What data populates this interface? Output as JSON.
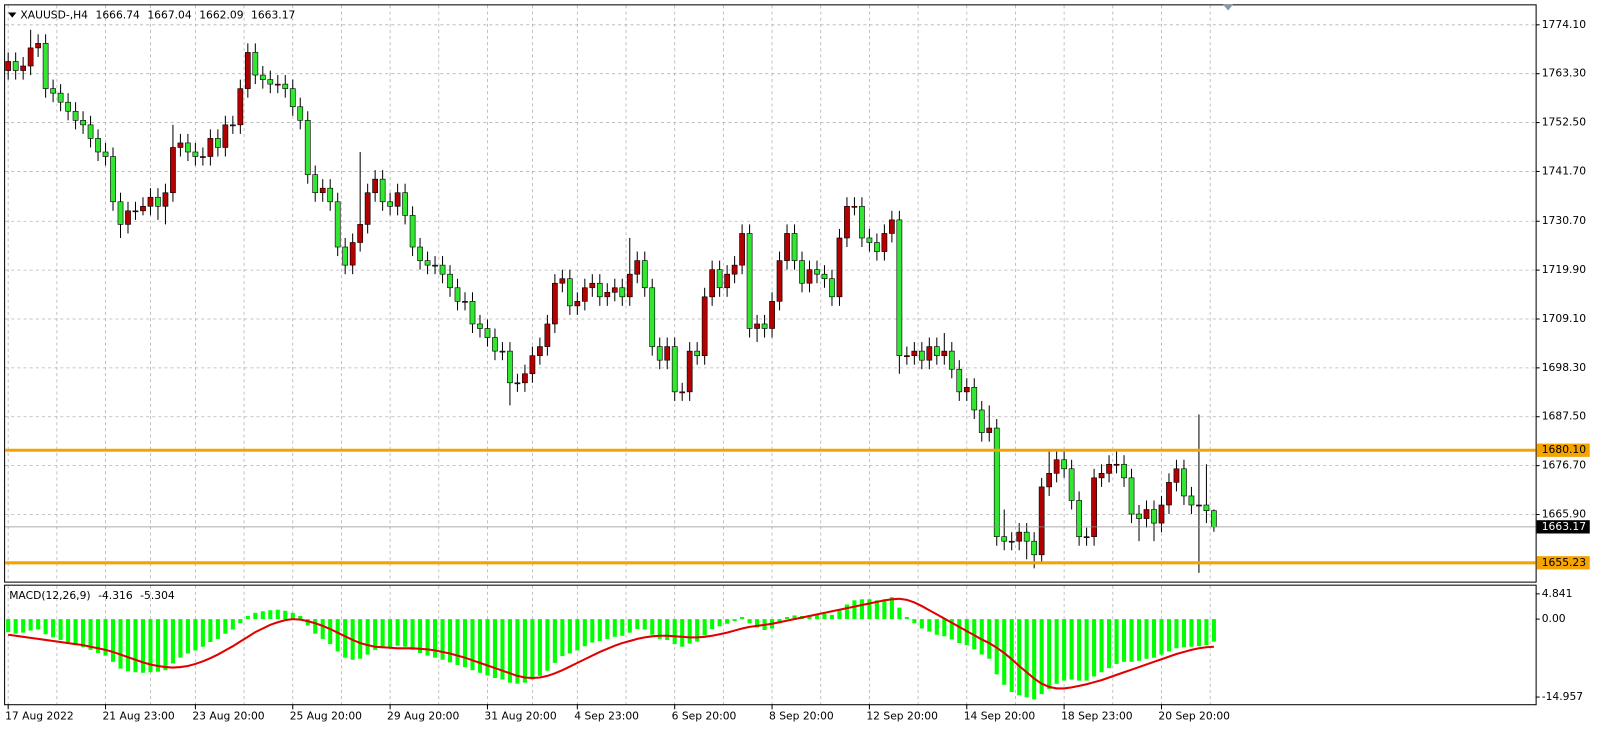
{
  "chart_data": {
    "type": "candlestick",
    "symbol": "XAUUSD-,H4",
    "bull_color": "#b30000",
    "bear_color": "#32e632",
    "grid": true,
    "ylim": [
      1651.3,
      1778.4
    ],
    "yticks": [
      {
        "value": 1774.1,
        "label": "1774.10"
      },
      {
        "value": 1763.3,
        "label": "1763.30"
      },
      {
        "value": 1752.5,
        "label": "1752.50"
      },
      {
        "value": 1741.7,
        "label": "1741.70"
      },
      {
        "value": 1730.7,
        "label": "1730.70"
      },
      {
        "value": 1719.9,
        "label": "1719.90"
      },
      {
        "value": 1709.1,
        "label": "1709.10"
      },
      {
        "value": 1698.3,
        "label": "1698.30"
      },
      {
        "value": 1687.5,
        "label": "1687.50"
      },
      {
        "value": 1676.7,
        "label": "1676.70"
      },
      {
        "value": 1665.9,
        "label": "1665.90"
      }
    ],
    "levels": [
      {
        "value": 1680.1,
        "label": "1680.10"
      },
      {
        "value": 1655.23,
        "label": "1655.23"
      }
    ],
    "level_color": "#f5a300",
    "categories": [
      "17 Aug 2022",
      null,
      null,
      null,
      null,
      null,
      null,
      null,
      null,
      null,
      null,
      null,
      null,
      "21 Aug 23:00",
      null,
      null,
      null,
      null,
      null,
      null,
      null,
      null,
      null,
      null,
      null,
      "23 Aug 20:00",
      null,
      null,
      null,
      null,
      null,
      null,
      null,
      null,
      null,
      null,
      null,
      null,
      "25 Aug 20:00",
      null,
      null,
      null,
      null,
      null,
      null,
      null,
      null,
      null,
      null,
      null,
      null,
      "29 Aug 20:00",
      null,
      null,
      null,
      null,
      null,
      null,
      null,
      null,
      null,
      null,
      null,
      null,
      "31 Aug 20:00",
      null,
      null,
      null,
      null,
      null,
      null,
      null,
      null,
      null,
      null,
      null,
      "4 Sep 23:00",
      null,
      null,
      null,
      null,
      null,
      null,
      null,
      null,
      null,
      null,
      null,
      null,
      "6 Sep 20:00",
      null,
      null,
      null,
      null,
      null,
      null,
      null,
      null,
      null,
      null,
      null,
      null,
      "8 Sep 20:00",
      null,
      null,
      null,
      null,
      null,
      null,
      null,
      null,
      null,
      null,
      null,
      null,
      "12 Sep 20:00",
      null,
      null,
      null,
      null,
      null,
      null,
      null,
      null,
      null,
      null,
      null,
      null,
      "14 Sep 20:00",
      null,
      null,
      null,
      null,
      null,
      null,
      null,
      null,
      null,
      null,
      null,
      null,
      "18 Sep 23:00",
      null,
      null,
      null,
      null,
      null,
      null,
      null,
      null,
      null,
      null,
      null,
      null,
      "20 Sep 20:00",
      null,
      null,
      null,
      null,
      null,
      null,
      null
    ],
    "open": [
      1764,
      1766,
      1764,
      1765,
      1769,
      1770,
      1760,
      1759,
      1757,
      1755,
      1753,
      1752,
      1749,
      1746,
      1745,
      1735,
      1730,
      1733,
      1733,
      1734,
      1736,
      1734,
      1737,
      1747,
      1748,
      1746,
      1745,
      1745,
      1749,
      1747,
      1752,
      1752,
      1760,
      1768,
      1763,
      1762,
      1761,
      1761,
      1760,
      1756,
      1753,
      1741,
      1737,
      1738,
      1735,
      1725,
      1721,
      1726,
      1730,
      1737,
      1740,
      1735,
      1734,
      1737,
      1732,
      1725,
      1722,
      1721,
      1721,
      1719,
      1716,
      1713,
      1713,
      1708,
      1707,
      1705,
      1702,
      1702,
      1695,
      1695,
      1697,
      1701,
      1703,
      1708,
      1717,
      1718,
      1712,
      1713,
      1716,
      1717,
      1714,
      1715,
      1716,
      1714,
      1719,
      1722,
      1716,
      1703,
      1700,
      1703,
      1693,
      1693,
      1702,
      1701,
      1714,
      1720,
      1716,
      1719,
      1721,
      1728,
      1707,
      1708,
      1707,
      1713,
      1722,
      1728,
      1722,
      1717,
      1720,
      1719,
      1718,
      1714,
      1727,
      1734,
      1734,
      1727,
      1726,
      1724,
      1728,
      1731,
      1701,
      1701,
      1702,
      1700,
      1703,
      1701,
      1702,
      1698,
      1693,
      1694,
      1689,
      1684,
      1685,
      1661,
      1660,
      1660,
      1662,
      1660,
      1657,
      1672,
      1675,
      1678,
      1676,
      1669,
      1661,
      1661,
      1674,
      1675,
      1677,
      1677,
      1674,
      1666,
      1665,
      1667,
      1664,
      1668,
      1673,
      1676,
      1670,
      1668,
      1668,
      1666.74
    ],
    "high": [
      1768,
      1768,
      1767,
      1773,
      1772,
      1772,
      1762,
      1761,
      1759,
      1757,
      1755,
      1754,
      1751,
      1748,
      1747,
      1737,
      1735,
      1735,
      1736,
      1738,
      1738,
      1739,
      1752,
      1750,
      1750,
      1748,
      1747,
      1751,
      1751,
      1754,
      1754,
      1762,
      1770,
      1770,
      1765,
      1764,
      1763,
      1763,
      1762,
      1758,
      1755,
      1743,
      1740,
      1740,
      1737,
      1727,
      1728,
      1746,
      1739,
      1742,
      1742,
      1737,
      1739,
      1739,
      1734,
      1727,
      1724,
      1723,
      1723,
      1721,
      1718,
      1715,
      1715,
      1710,
      1709,
      1707,
      1704,
      1704,
      1697,
      1699,
      1703,
      1705,
      1710,
      1719,
      1720,
      1720,
      1715,
      1718,
      1719,
      1719,
      1717,
      1718,
      1718,
      1727,
      1724,
      1724,
      1718,
      1705,
      1705,
      1705,
      1695,
      1704,
      1704,
      1716,
      1722,
      1722,
      1721,
      1723,
      1730,
      1730,
      1710,
      1710,
      1715,
      1724,
      1730,
      1730,
      1724,
      1722,
      1722,
      1721,
      1720,
      1729,
      1736,
      1736,
      1736,
      1729,
      1728,
      1730,
      1733,
      1733,
      1703,
      1704,
      1704,
      1705,
      1705,
      1706,
      1704,
      1700,
      1696,
      1696,
      1691,
      1690,
      1687,
      1667,
      1662,
      1664,
      1664,
      1662,
      1674,
      1680,
      1680,
      1680,
      1678,
      1671,
      1663,
      1676,
      1677,
      1679,
      1680,
      1679,
      1676,
      1668,
      1669,
      1669,
      1670,
      1675,
      1678,
      1678,
      1672,
      1688,
      1677,
      1667.04
    ],
    "low": [
      1762,
      1762,
      1762,
      1763,
      1767,
      1758,
      1757,
      1755,
      1753,
      1751,
      1750,
      1747,
      1744,
      1743,
      1733,
      1727,
      1728,
      1731,
      1732,
      1732,
      1731,
      1730,
      1735,
      1745,
      1744,
      1743,
      1743,
      1743,
      1745,
      1745,
      1750,
      1750,
      1758,
      1761,
      1760,
      1759,
      1759,
      1758,
      1754,
      1751,
      1739,
      1735,
      1735,
      1733,
      1723,
      1719,
      1719,
      1724,
      1728,
      1735,
      1733,
      1732,
      1732,
      1730,
      1723,
      1720,
      1719,
      1719,
      1717,
      1714,
      1711,
      1711,
      1706,
      1705,
      1703,
      1700,
      1700,
      1690,
      1693,
      1693,
      1695,
      1699,
      1701,
      1706,
      1715,
      1710,
      1710,
      1711,
      1714,
      1712,
      1712,
      1713,
      1712,
      1712,
      1717,
      1714,
      1701,
      1698,
      1698,
      1691,
      1691,
      1691,
      1699,
      1699,
      1712,
      1714,
      1714,
      1717,
      1719,
      1705,
      1704,
      1705,
      1705,
      1711,
      1720,
      1720,
      1715,
      1715,
      1717,
      1716,
      1712,
      1712,
      1725,
      1732,
      1725,
      1724,
      1722,
      1722,
      1726,
      1697,
      1699,
      1699,
      1698,
      1698,
      1699,
      1699,
      1696,
      1691,
      1691,
      1687,
      1682,
      1682,
      1659,
      1658,
      1658,
      1658,
      1656,
      1654,
      1655,
      1670,
      1673,
      1674,
      1667,
      1659,
      1659,
      1659,
      1672,
      1673,
      1675,
      1672,
      1664,
      1660,
      1663,
      1660,
      1662,
      1666,
      1671,
      1668,
      1666,
      1653,
      1664,
      1662.09
    ],
    "close": [
      1766,
      1764,
      1765,
      1769,
      1770,
      1760,
      1759,
      1757,
      1755,
      1753,
      1752,
      1749,
      1746,
      1745,
      1735,
      1730,
      1733,
      1733,
      1734,
      1736,
      1734,
      1737,
      1747,
      1748,
      1746,
      1745,
      1745,
      1749,
      1747,
      1752,
      1752,
      1760,
      1768,
      1763,
      1762,
      1761,
      1761,
      1760,
      1756,
      1753,
      1741,
      1737,
      1738,
      1735,
      1725,
      1721,
      1726,
      1730,
      1737,
      1740,
      1735,
      1734,
      1737,
      1732,
      1725,
      1722,
      1721,
      1721,
      1719,
      1716,
      1713,
      1713,
      1708,
      1707,
      1705,
      1702,
      1702,
      1695,
      1695,
      1697,
      1701,
      1703,
      1708,
      1717,
      1718,
      1712,
      1713,
      1716,
      1717,
      1714,
      1715,
      1716,
      1714,
      1719,
      1722,
      1716,
      1703,
      1700,
      1703,
      1693,
      1693,
      1702,
      1701,
      1714,
      1720,
      1716,
      1719,
      1721,
      1728,
      1707,
      1708,
      1707,
      1713,
      1722,
      1728,
      1722,
      1717,
      1720,
      1719,
      1718,
      1714,
      1727,
      1734,
      1734,
      1727,
      1726,
      1724,
      1728,
      1731,
      1701,
      1701,
      1702,
      1700,
      1703,
      1701,
      1702,
      1698,
      1693,
      1694,
      1689,
      1684,
      1685,
      1661,
      1660,
      1660,
      1662,
      1660,
      1657,
      1672,
      1675,
      1678,
      1676,
      1669,
      1661,
      1661,
      1674,
      1675,
      1677,
      1677,
      1674,
      1666,
      1665,
      1667,
      1664,
      1668,
      1673,
      1676,
      1670,
      1668,
      1668,
      1666.74,
      1663.17
    ],
    "macd": {
      "label": "MACD(12,26,9)",
      "histogram_color": "#00ff00",
      "signal_color": "#e00000",
      "ylim": [
        -16.13,
        6.41
      ],
      "yticks": [
        4.841,
        {
          "value": 0,
          "label": "0.00"
        },
        -14.957
      ],
      "histogram": [
        -2.5,
        -2.8,
        -2.6,
        -2.2,
        -2.0,
        -2.9,
        -3.5,
        -4.0,
        -4.5,
        -5.0,
        -5.4,
        -5.9,
        -6.5,
        -7.0,
        -8.2,
        -9.5,
        -10.0,
        -10.2,
        -10.3,
        -10.2,
        -10.1,
        -9.8,
        -8.5,
        -7.4,
        -6.6,
        -6.0,
        -5.3,
        -4.4,
        -3.8,
        -2.8,
        -2.0,
        -0.8,
        0.6,
        1.2,
        1.5,
        1.7,
        1.8,
        1.6,
        1.2,
        0.6,
        -1.2,
        -2.8,
        -3.8,
        -4.8,
        -6.2,
        -7.4,
        -7.8,
        -7.6,
        -6.8,
        -5.9,
        -5.6,
        -5.4,
        -5.1,
        -5.3,
        -5.9,
        -6.5,
        -7.0,
        -7.4,
        -7.8,
        -8.3,
        -8.8,
        -9.2,
        -9.8,
        -10.3,
        -10.8,
        -11.3,
        -11.6,
        -12.2,
        -12.4,
        -12.2,
        -11.6,
        -10.9,
        -9.9,
        -8.4,
        -7.1,
        -6.6,
        -6.0,
        -5.2,
        -4.5,
        -4.2,
        -3.8,
        -3.4,
        -3.2,
        -2.6,
        -1.9,
        -2.0,
        -3.0,
        -3.8,
        -4.0,
        -4.8,
        -5.3,
        -4.7,
        -4.3,
        -3.1,
        -1.9,
        -1.4,
        -0.9,
        -0.4,
        0.4,
        -0.8,
        -1.6,
        -2.1,
        -1.8,
        -0.8,
        0.4,
        0.7,
        0.6,
        0.8,
        0.9,
        1.0,
        0.8,
        1.7,
        2.8,
        3.6,
        3.8,
        3.8,
        3.6,
        3.8,
        4.2,
        2.2,
        0.4,
        -0.8,
        -1.8,
        -2.4,
        -3.0,
        -3.3,
        -3.9,
        -4.6,
        -5.0,
        -5.8,
        -6.8,
        -7.6,
        -10.6,
        -12.6,
        -14.0,
        -14.6,
        -15.0,
        -15.4,
        -14.4,
        -13.4,
        -12.4,
        -11.8,
        -11.6,
        -11.8,
        -11.8,
        -11.0,
        -10.2,
        -9.4,
        -8.6,
        -8.2,
        -8.2,
        -8.0,
        -7.6,
        -7.4,
        -6.8,
        -6.2,
        -5.6,
        -5.4,
        -5.3,
        -5.2,
        -5.0,
        -4.316
      ],
      "signal": [
        -3.0,
        -3.2,
        -3.4,
        -3.6,
        -3.8,
        -4.0,
        -4.2,
        -4.4,
        -4.6,
        -4.8,
        -5.0,
        -5.3,
        -5.6,
        -5.9,
        -6.3,
        -6.8,
        -7.3,
        -7.8,
        -8.3,
        -8.7,
        -9.0,
        -9.2,
        -9.3,
        -9.2,
        -9.0,
        -8.6,
        -8.1,
        -7.5,
        -6.8,
        -6.0,
        -5.2,
        -4.3,
        -3.4,
        -2.5,
        -1.8,
        -1.1,
        -0.6,
        -0.2,
        0.0,
        -0.1,
        -0.4,
        -0.8,
        -1.3,
        -1.9,
        -2.6,
        -3.3,
        -4.0,
        -4.6,
        -5.0,
        -5.3,
        -5.4,
        -5.5,
        -5.6,
        -5.6,
        -5.6,
        -5.7,
        -5.8,
        -6.0,
        -6.3,
        -6.6,
        -7.0,
        -7.4,
        -7.9,
        -8.4,
        -8.9,
        -9.4,
        -9.9,
        -10.4,
        -10.9,
        -11.2,
        -11.3,
        -11.2,
        -10.9,
        -10.4,
        -9.8,
        -9.1,
        -8.4,
        -7.7,
        -7.0,
        -6.3,
        -5.7,
        -5.1,
        -4.6,
        -4.2,
        -3.8,
        -3.5,
        -3.3,
        -3.2,
        -3.2,
        -3.3,
        -3.4,
        -3.5,
        -3.5,
        -3.4,
        -3.2,
        -2.9,
        -2.6,
        -2.2,
        -1.8,
        -1.5,
        -1.3,
        -1.1,
        -0.9,
        -0.6,
        -0.3,
        0.0,
        0.3,
        0.6,
        0.9,
        1.2,
        1.5,
        1.8,
        2.1,
        2.4,
        2.7,
        3.0,
        3.3,
        3.6,
        3.8,
        3.9,
        3.7,
        3.2,
        2.5,
        1.7,
        0.9,
        0.1,
        -0.7,
        -1.5,
        -2.3,
        -3.1,
        -3.9,
        -4.6,
        -5.5,
        -6.5,
        -7.7,
        -9.0,
        -10.2,
        -11.4,
        -12.4,
        -13.0,
        -13.3,
        -13.3,
        -13.1,
        -12.8,
        -12.5,
        -12.1,
        -11.7,
        -11.2,
        -10.7,
        -10.2,
        -9.7,
        -9.2,
        -8.7,
        -8.2,
        -7.7,
        -7.2,
        -6.7,
        -6.3,
        -5.9,
        -5.6,
        -5.4,
        -5.304
      ]
    }
  }
}
